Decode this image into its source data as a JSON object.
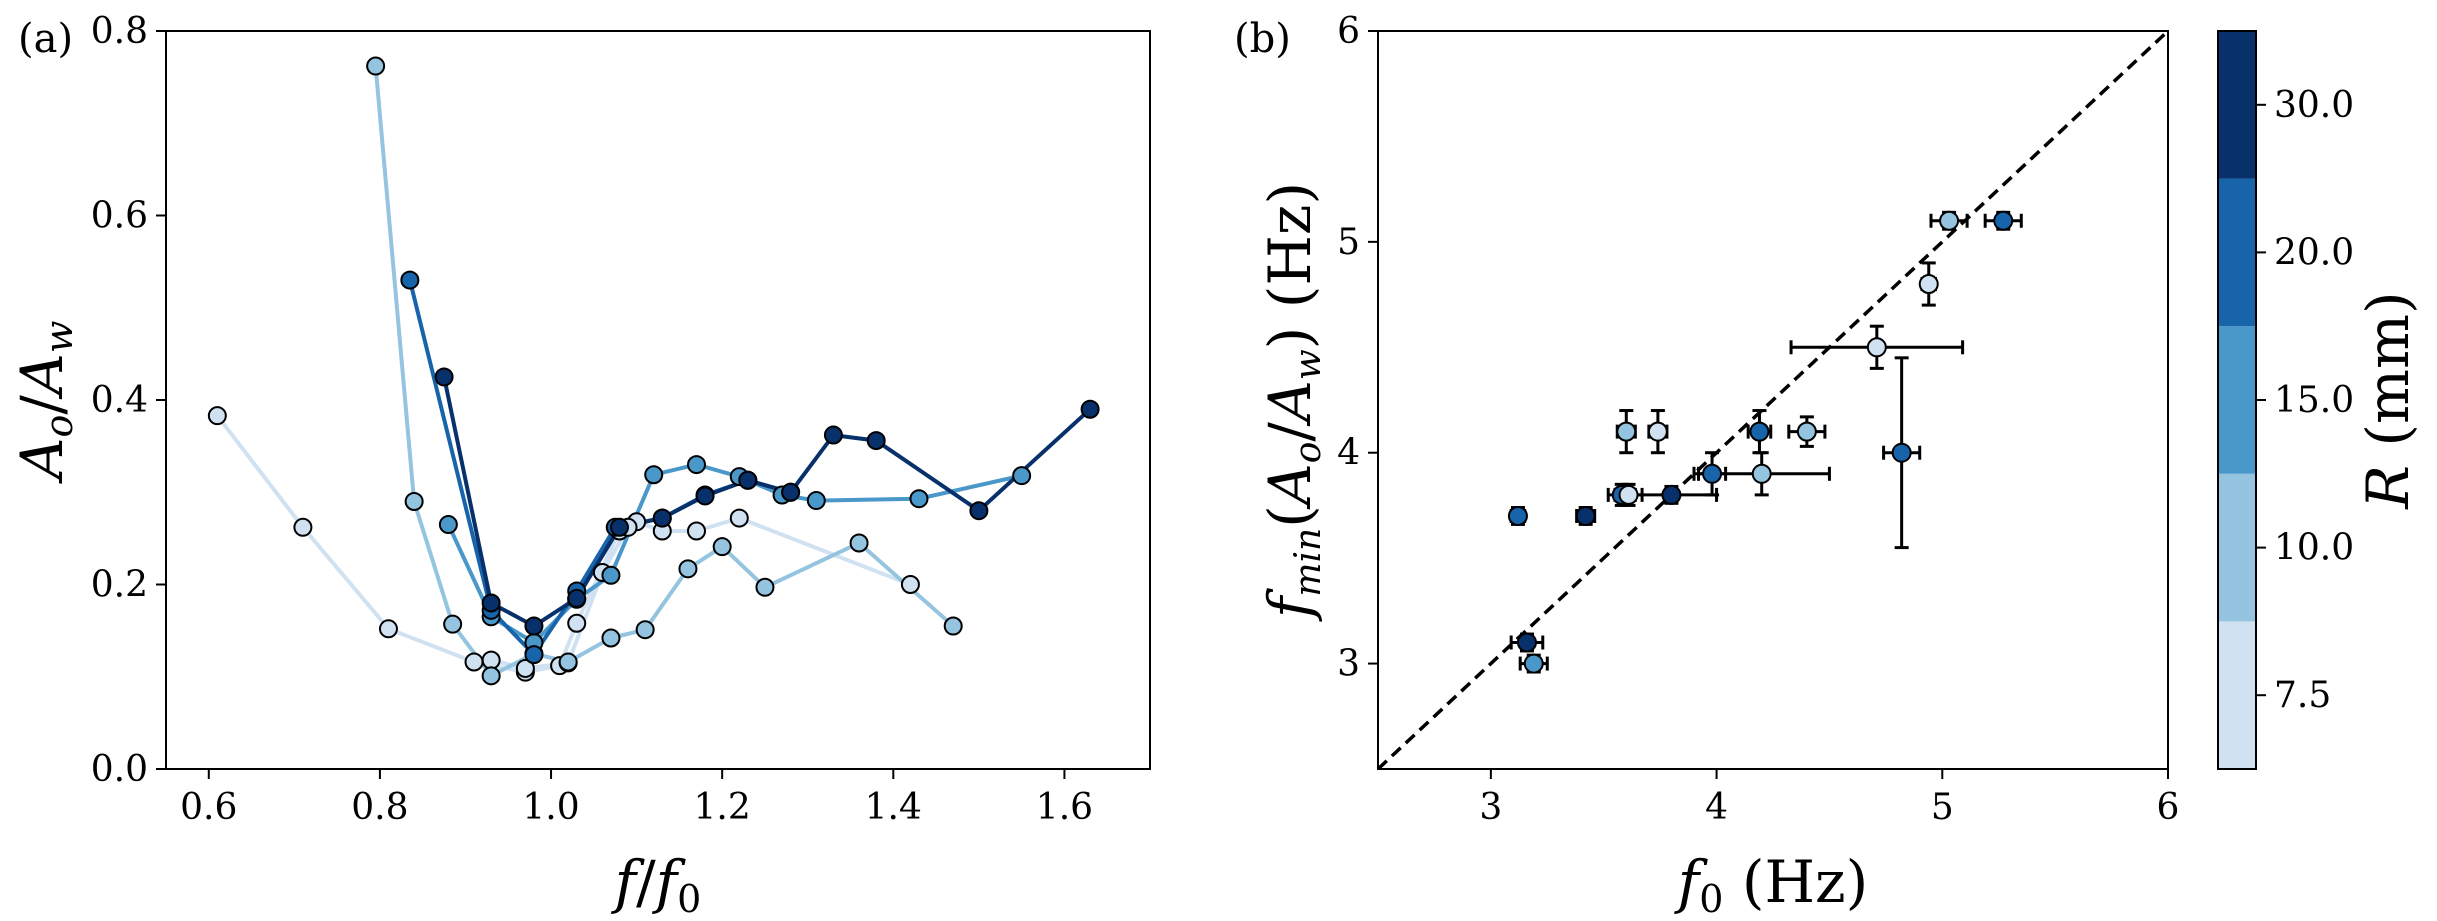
{
  "chart_data": [
    {
      "panel": "(a)",
      "type": "line",
      "xlabel": "f/f0",
      "ylabel": "Ao/Aw",
      "xlim": [
        0.55,
        1.7
      ],
      "ylim": [
        0.0,
        0.8
      ],
      "xticks": [
        "0.6",
        "0.8",
        "1.0",
        "1.2",
        "1.4",
        "1.6"
      ],
      "yticks": [
        "0.0",
        "0.2",
        "0.4",
        "0.6",
        "0.8"
      ],
      "series": [
        {
          "name": "R = 7.5 mm",
          "colorIndex": 0,
          "x": [
            0.61,
            0.71,
            0.81,
            0.91,
            0.97,
            1.01,
            1.03,
            1.08,
            1.1,
            1.13,
            1.17,
            1.22,
            1.42
          ],
          "y": [
            0.383,
            0.262,
            0.152,
            0.116,
            0.105,
            0.112,
            0.158,
            0.258,
            0.268,
            0.258,
            0.258,
            0.272,
            0.2
          ]
        },
        {
          "name": "R = 7.5 mm (b)",
          "colorIndex": 0,
          "x": [
            0.93,
            0.97,
            1.02,
            1.06,
            1.09
          ],
          "y": [
            0.118,
            0.109,
            0.115,
            0.213,
            0.262
          ]
        },
        {
          "name": "R = 10.0 mm",
          "colorIndex": 1,
          "x": [
            0.795,
            0.84,
            0.885,
            0.93,
            0.98,
            1.02,
            1.07,
            1.11,
            1.16,
            1.2,
            1.25,
            1.36,
            1.47
          ],
          "y": [
            0.762,
            0.29,
            0.157,
            0.101,
            0.125,
            0.116,
            0.142,
            0.151,
            0.217,
            0.241,
            0.197,
            0.245,
            0.155
          ]
        },
        {
          "name": "R = 15.0 mm",
          "colorIndex": 2,
          "x": [
            0.88,
            0.93,
            0.98,
            1.03,
            1.07,
            1.12,
            1.17,
            1.22,
            1.27,
            1.31,
            1.43,
            1.55
          ],
          "y": [
            0.265,
            0.165,
            0.137,
            0.184,
            0.21,
            0.319,
            0.33,
            0.317,
            0.297,
            0.291,
            0.293,
            0.318
          ]
        },
        {
          "name": "R = 20.0 mm",
          "colorIndex": 3,
          "x": [
            0.835,
            0.93,
            0.98,
            1.03,
            1.075,
            1.13,
            1.18,
            1.23,
            1.28
          ],
          "y": [
            0.53,
            0.172,
            0.124,
            0.193,
            0.262,
            0.272,
            0.297,
            0.313,
            0.3
          ]
        },
        {
          "name": "R = 30.0 mm",
          "colorIndex": 4,
          "x": [
            0.875,
            0.93,
            0.98,
            1.03,
            1.08,
            1.13,
            1.18,
            1.23,
            1.28,
            1.33,
            1.38,
            1.5,
            1.63
          ],
          "y": [
            0.425,
            0.18,
            0.155,
            0.185,
            0.262,
            0.272,
            0.296,
            0.313,
            0.3,
            0.362,
            0.356,
            0.28,
            0.39
          ]
        }
      ]
    },
    {
      "panel": "(b)",
      "type": "scatter",
      "xlabel": "f0 (Hz)",
      "ylabel": "fmin(Ao/Aw) (Hz)",
      "xlim": [
        2.5,
        6.0
      ],
      "ylim": [
        2.5,
        6.0
      ],
      "xticks": [
        "3",
        "4",
        "5",
        "6"
      ],
      "yticks": [
        "3",
        "4",
        "5",
        "6"
      ],
      "reference_line": "y = x (dashed)",
      "points": [
        {
          "x": 3.12,
          "y": 3.7,
          "xerr": 0.03,
          "yerr": 0.04,
          "colorIndex": 3
        },
        {
          "x": 3.16,
          "y": 3.1,
          "xerr": 0.07,
          "yerr": 0.04,
          "colorIndex": 4
        },
        {
          "x": 3.19,
          "y": 3.0,
          "xerr": 0.06,
          "yerr": 0.04,
          "colorIndex": 2
        },
        {
          "x": 3.42,
          "y": 3.7,
          "xerr": 0.04,
          "yerr": 0.04,
          "colorIndex": 4
        },
        {
          "x": 3.58,
          "y": 3.8,
          "xerr": 0.06,
          "yerr": 0.05,
          "colorIndex": 3
        },
        {
          "x": 3.61,
          "y": 3.8,
          "xerr": 0.06,
          "yerr": 0.05,
          "colorIndex": 0
        },
        {
          "x": 3.6,
          "y": 4.1,
          "xerr": 0.04,
          "yerr": 0.1,
          "colorIndex": 1
        },
        {
          "x": 3.74,
          "y": 4.1,
          "xerr": 0.04,
          "yerr": 0.1,
          "colorIndex": 0
        },
        {
          "x": 3.8,
          "y": 3.8,
          "xerr": 0.2,
          "yerr": 0.04,
          "colorIndex": 4
        },
        {
          "x": 3.98,
          "y": 3.9,
          "xerr": 0.06,
          "yerr": 0.1,
          "colorIndex": 3
        },
        {
          "x": 4.19,
          "y": 4.1,
          "xerr": 0.05,
          "yerr": 0.1,
          "colorIndex": 3
        },
        {
          "x": 4.2,
          "y": 3.9,
          "xerr": 0.3,
          "yerr": 0.1,
          "colorIndex": 1
        },
        {
          "x": 4.4,
          "y": 4.1,
          "xerr": 0.08,
          "yerr": 0.07,
          "colorIndex": 1
        },
        {
          "x": 4.71,
          "y": 4.5,
          "xerr": 0.38,
          "yerr": 0.1,
          "colorIndex": 0
        },
        {
          "x": 4.82,
          "y": 4.0,
          "xerr": 0.08,
          "yerr": 0.45,
          "colorIndex": 3
        },
        {
          "x": 4.94,
          "y": 4.8,
          "xerr": 0.03,
          "yerr": 0.1,
          "colorIndex": 0
        },
        {
          "x": 5.03,
          "y": 5.1,
          "xerr": 0.08,
          "yerr": 0.04,
          "colorIndex": 1
        },
        {
          "x": 5.27,
          "y": 5.1,
          "xerr": 0.08,
          "yerr": 0.04,
          "colorIndex": 3
        }
      ]
    },
    {
      "type": "colorbar",
      "label": "R (mm)",
      "ticks": [
        "7.5",
        "10.0",
        "15.0",
        "20.0",
        "30.0"
      ],
      "colors": [
        "#d0e1f2",
        "#94c4df",
        "#4a98c9",
        "#1764ab",
        "#08306b"
      ]
    }
  ]
}
